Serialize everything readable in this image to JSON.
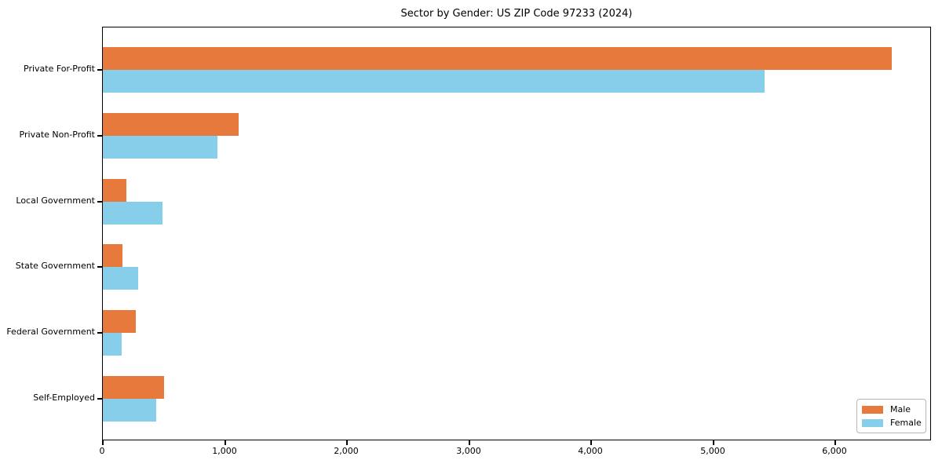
{
  "chart_data": {
    "type": "bar",
    "orientation": "horizontal",
    "title": "Sector by Gender: US ZIP Code 97233 (2024)",
    "categories": [
      "Private For-Profit",
      "Private Non-Profit",
      "Local Government",
      "State Government",
      "Federal Government",
      "Self-Employed"
    ],
    "series": [
      {
        "name": "Male",
        "color": "#E8793D",
        "values": [
          6465,
          1110,
          190,
          160,
          270,
          500
        ]
      },
      {
        "name": "Female",
        "color": "#87CEEB",
        "values": [
          5420,
          940,
          490,
          290,
          155,
          435
        ]
      }
    ],
    "xlabel": "",
    "ylabel": "",
    "xlim": [
      0,
      6790
    ],
    "x_ticks": [
      0,
      1000,
      2000,
      3000,
      4000,
      5000,
      6000
    ],
    "x_tick_labels": [
      "0",
      "1,000",
      "2,000",
      "3,000",
      "4,000",
      "5,000",
      "6,000"
    ],
    "grid": false,
    "legend_position": "lower right",
    "axis_color": "#000000",
    "background_color": "#ffffff"
  }
}
